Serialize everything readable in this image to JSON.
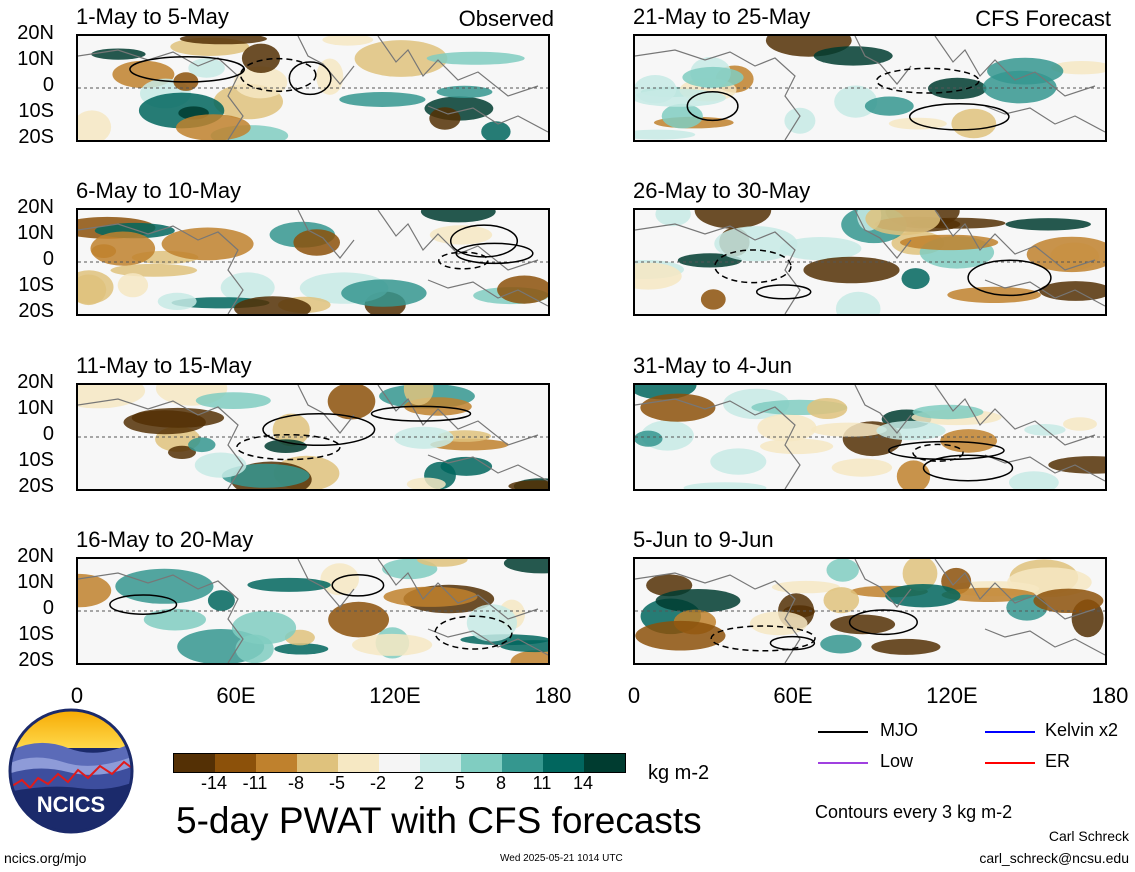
{
  "panels": [
    {
      "title": "1-May to 5-May",
      "label": "Observed",
      "mjo": "obs"
    },
    {
      "title": "21-May to 25-May",
      "label": "CFS Forecast",
      "mjo": "fc"
    },
    {
      "title": "6-May to 10-May",
      "label": "",
      "mjo": "obs"
    },
    {
      "title": "26-May to 30-May",
      "label": "",
      "mjo": "fc"
    },
    {
      "title": "11-May to 15-May",
      "label": "",
      "mjo": "obs"
    },
    {
      "title": "31-May to 4-Jun",
      "label": "",
      "mjo": "fc"
    },
    {
      "title": "16-May to 20-May",
      "label": "",
      "mjo": "obs"
    },
    {
      "title": "5-Jun to 9-Jun",
      "label": "",
      "mjo": "fc"
    }
  ],
  "lat_labels": [
    "20N",
    "10N",
    "0",
    "10S",
    "20S"
  ],
  "lon_labels": [
    "0",
    "60E",
    "120E",
    "180"
  ],
  "colorbar": {
    "colors": [
      "#543005",
      "#8c510a",
      "#bf812d",
      "#dfc27d",
      "#f6e8c3",
      "#f5f5f5",
      "#c7eae5",
      "#80cdc1",
      "#35978f",
      "#01665e",
      "#003c30"
    ],
    "ticks": [
      "-14",
      "-11",
      "-8",
      "-5",
      "-2",
      "2",
      "5",
      "8",
      "11",
      "14"
    ],
    "units": "kg m-2"
  },
  "title": "5-day PWAT with CFS forecasts",
  "legend": [
    {
      "label": "MJO",
      "color": "#000000"
    },
    {
      "label": "Kelvin x2",
      "color": "#0000ff"
    },
    {
      "label": "Low",
      "color": "#a040e0"
    },
    {
      "label": "ER",
      "color": "#ff0000"
    }
  ],
  "contour_note": "Contours every 3 kg m-2",
  "logo_text": "NCICS",
  "footer": {
    "url": "ncics.org/mjo",
    "timestamp": "Wed 2025-05-21 1014 UTC",
    "author": "Carl Schreck",
    "email": "carl_schreck@ncsu.edu"
  }
}
